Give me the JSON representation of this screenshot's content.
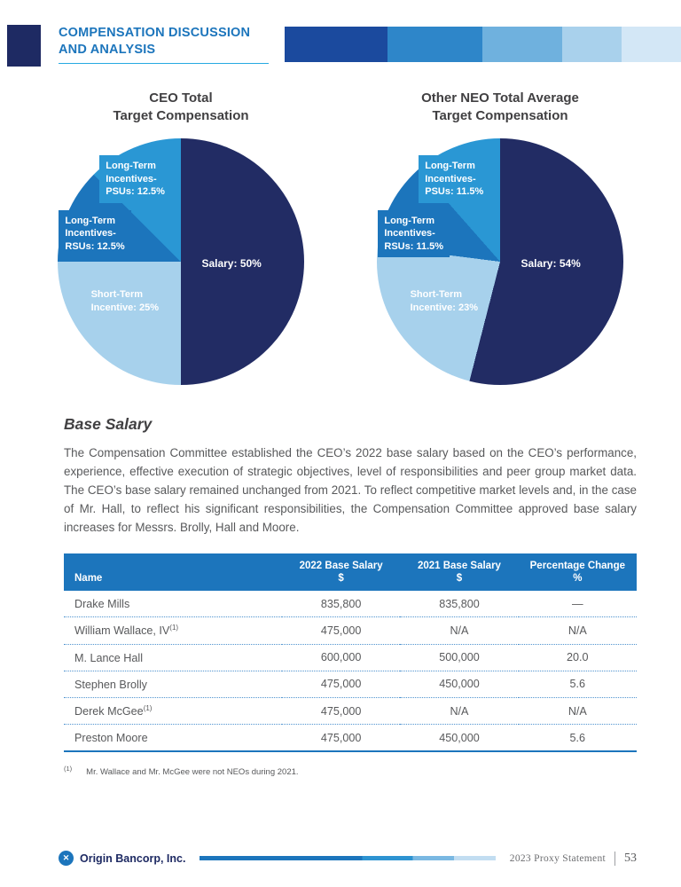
{
  "header": {
    "title": "COMPENSATION DISCUSSION\nAND ANALYSIS"
  },
  "colors": {
    "accent_blue": "#1c75bc",
    "navy": "#1e2a63",
    "underline_teal": "#27aae1",
    "stripe": [
      "#1b4a9e",
      "#2e86c9",
      "#6fb1de",
      "#a9d1ec",
      "#d3e7f6"
    ]
  },
  "chart_data": [
    {
      "type": "pie",
      "title": "CEO Total\nTarget Compensation",
      "direction": "clockwise_from_top",
      "slices": [
        {
          "name": "Salary",
          "value": 50,
          "color": "#222c64",
          "label": "Salary: 50%"
        },
        {
          "name": "Short-Term Incentive",
          "value": 25,
          "color": "#a7d1ec",
          "label": "Short-Term\nIncentive: 25%"
        },
        {
          "name": "Long-Term Incentives-RSUs",
          "value": 12.5,
          "color": "#1c75bc",
          "label": "Long-Term\nIncentives-\nRSUs: 12.5%"
        },
        {
          "name": "Long-Term Incentives-PSUs",
          "value": 12.5,
          "color": "#2a97d4",
          "label": "Long-Term\nIncentives-\nPSUs: 12.5%"
        }
      ]
    },
    {
      "type": "pie",
      "title": "Other NEO Total Average\nTarget Compensation",
      "direction": "clockwise_from_top",
      "slices": [
        {
          "name": "Salary",
          "value": 54,
          "color": "#222c64",
          "label": "Salary: 54%"
        },
        {
          "name": "Short-Term Incentive",
          "value": 23,
          "color": "#a7d1ec",
          "label": "Short-Term\nIncentive: 23%"
        },
        {
          "name": "Long-Term Incentives-RSUs",
          "value": 11.5,
          "color": "#1c75bc",
          "label": "Long-Term\nIncentives-\nRSUs: 11.5%"
        },
        {
          "name": "Long-Term Incentives-PSUs",
          "value": 11.5,
          "color": "#2a97d4",
          "label": "Long-Term\nIncentives-\nPSUs: 11.5%"
        }
      ]
    }
  ],
  "section": {
    "heading": "Base Salary",
    "paragraph": "The Compensation Committee established the CEO’s 2022 base salary based on the CEO’s performance, experience, effective execution of strategic objectives, level of responsibilities and peer group market data. The CEO’s base salary remained unchanged from 2021. To reflect competitive market levels and, in the case of Mr. Hall, to reflect his significant responsibilities, the Compensation Committee approved base salary increases for Messrs. Brolly, Hall and Moore."
  },
  "table": {
    "name_header": "Name",
    "cols": [
      {
        "line1": "2022 Base Salary",
        "line2": "$"
      },
      {
        "line1": "2021 Base Salary",
        "line2": "$"
      },
      {
        "line1": "Percentage Change",
        "line2": "%"
      }
    ],
    "rows": [
      {
        "name": "Drake Mills",
        "sup": "",
        "c2022": "835,800",
        "c2021": "835,800",
        "pct": "—"
      },
      {
        "name": "William Wallace, IV",
        "sup": "(1)",
        "c2022": "475,000",
        "c2021": "N/A",
        "pct": "N/A"
      },
      {
        "name": "M. Lance Hall",
        "sup": "",
        "c2022": "600,000",
        "c2021": "500,000",
        "pct": "20.0"
      },
      {
        "name": "Stephen Brolly",
        "sup": "",
        "c2022": "475,000",
        "c2021": "450,000",
        "pct": "5.6"
      },
      {
        "name": "Derek McGee",
        "sup": "(1)",
        "c2022": "475,000",
        "c2021": "N/A",
        "pct": "N/A"
      },
      {
        "name": "Preston Moore",
        "sup": "",
        "c2022": "475,000",
        "c2021": "450,000",
        "pct": "5.6"
      }
    ]
  },
  "footnote": {
    "marker": "(1)",
    "text": "Mr. Wallace and Mr. McGee were not NEOs during 2021."
  },
  "footer": {
    "company": "Origin Bancorp, Inc.",
    "doc_title": "2023 Proxy Statement",
    "page": "53"
  },
  "icons": {
    "logo_x": "✕"
  }
}
